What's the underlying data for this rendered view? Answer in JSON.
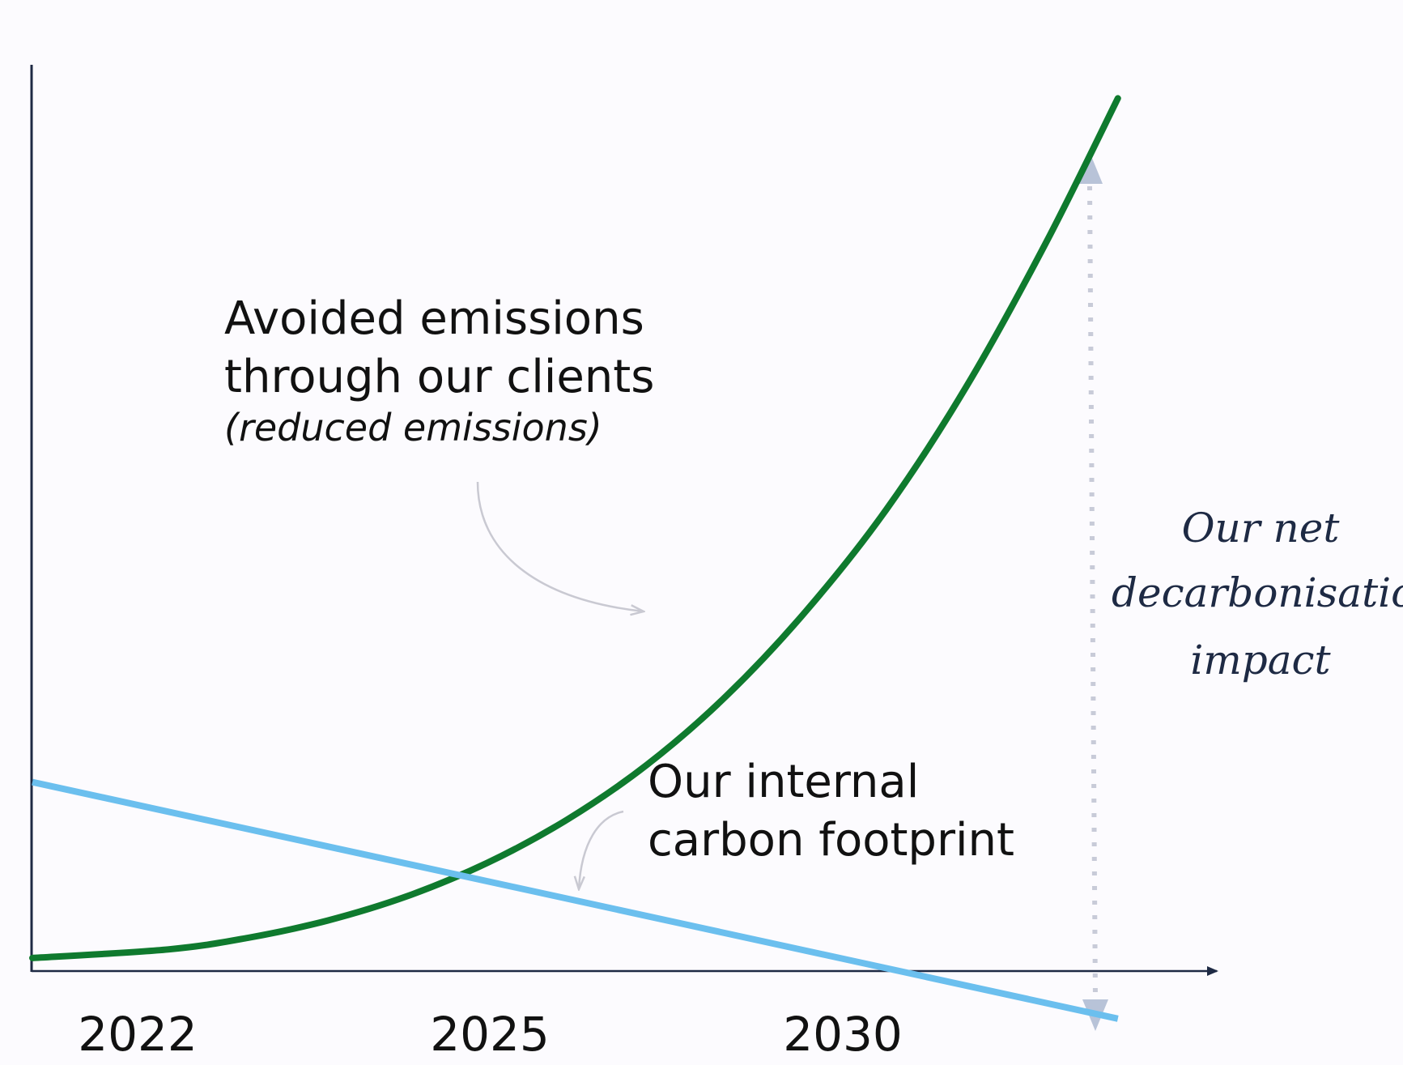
{
  "colors": {
    "background": "#fcfbfe",
    "axis": "#1e2a44",
    "avoided_line": "#0f7a2e",
    "internal_line": "#6bbfee",
    "annotation_arrow": "#c9c9d2",
    "impact_arrow": "#b8c3d8"
  },
  "labels": {
    "avoided_line1": "Avoided emissions",
    "avoided_line2": "through our clients",
    "avoided_line3": "(reduced emissions)",
    "internal_line1": "Our internal",
    "internal_line2": "carbon footprint",
    "impact_line1": "Our net",
    "impact_line2": "decarbonisation",
    "impact_line3": "impact"
  },
  "chart_data": {
    "type": "line",
    "x_ticks": [
      "2022",
      "2025",
      "2030"
    ],
    "series": [
      {
        "name": "Avoided emissions through our clients",
        "color": "#0f7a2e",
        "x": [
          2021.3,
          2023,
          2024,
          2025,
          2026,
          2027,
          2028,
          2029,
          2030,
          2031,
          2032,
          2033,
          2034,
          2034.9
        ],
        "y": [
          0.4,
          1.0,
          1.8,
          3.0,
          4.7,
          7.0,
          10.0,
          13.8,
          18.6,
          24.5,
          31.5,
          40.0,
          50.0,
          60.0
        ]
      },
      {
        "name": "Our internal carbon footprint",
        "color": "#6bbfee",
        "x": [
          2021.3,
          2034.9
        ],
        "y": [
          12.6,
          -3.8
        ]
      }
    ],
    "xlim": [
      2021.3,
      2036.2
    ],
    "ylim": [
      -4.6,
      63.0
    ],
    "grid": false,
    "legend": "none"
  }
}
